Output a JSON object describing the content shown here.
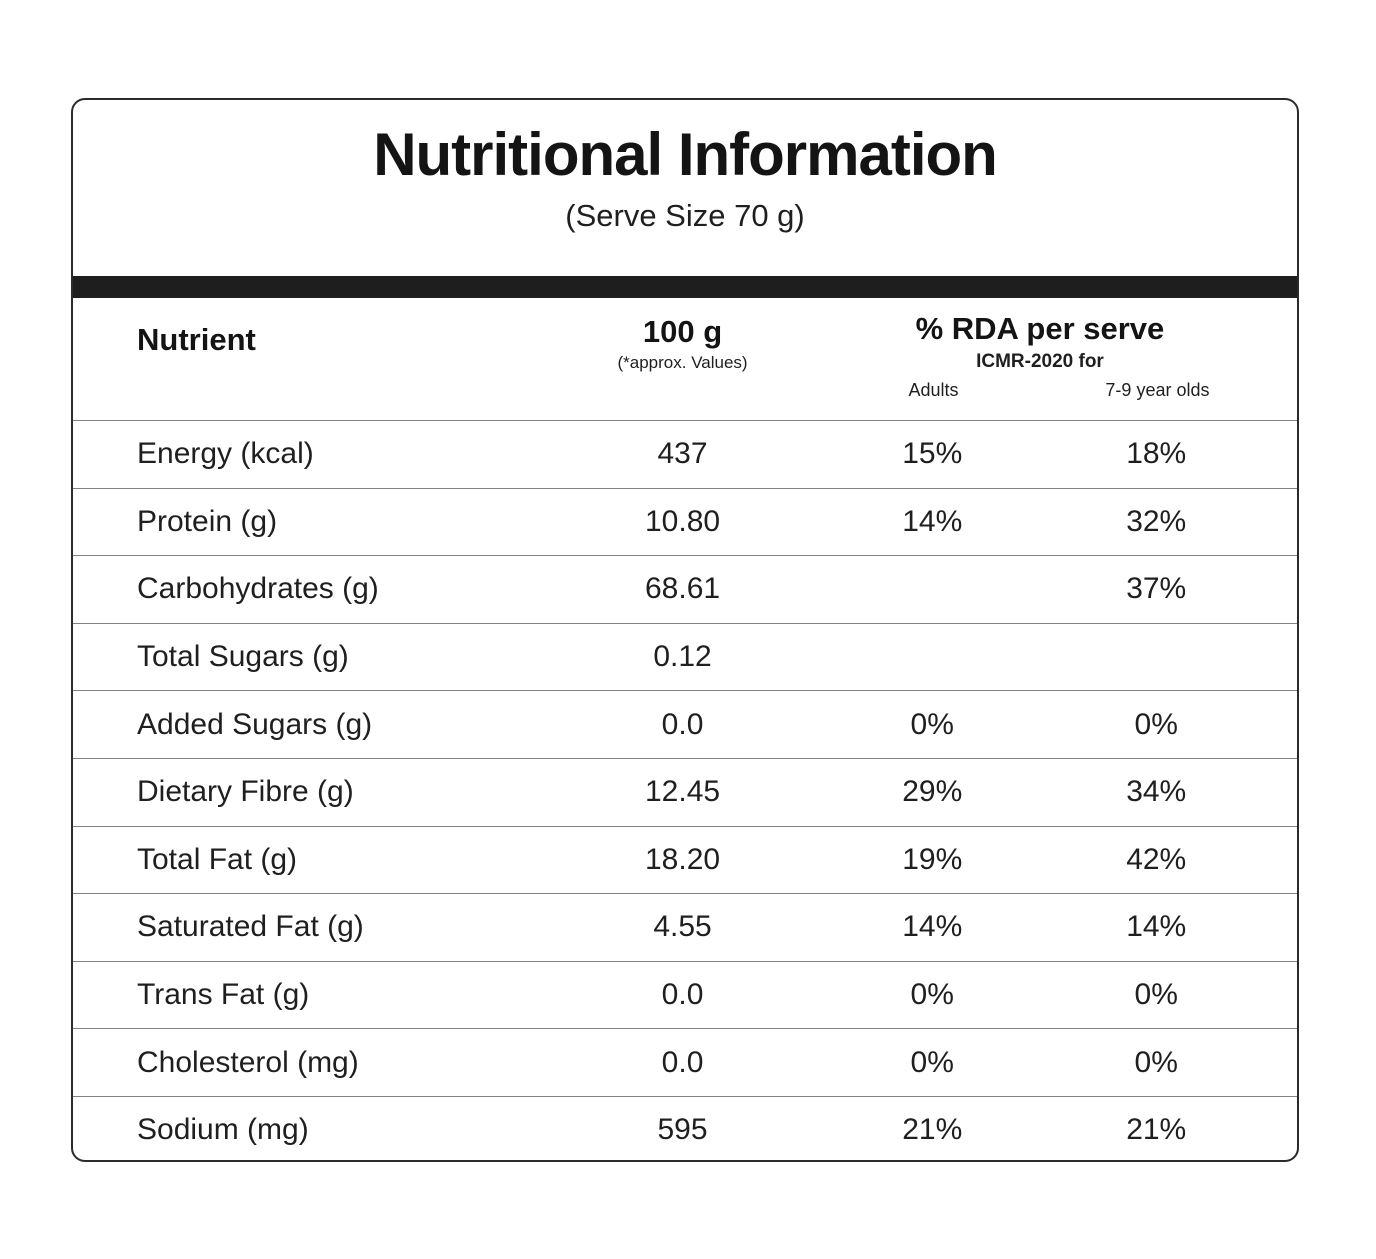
{
  "title": "Nutritional Information",
  "subtitle": "(Serve Size 70 g)",
  "colors": {
    "text": "#1f1f1f",
    "divider_bar": "#1e1e1e",
    "row_separator": "#828282",
    "card_border": "#2b2b2b",
    "background": "#ffffff"
  },
  "table": {
    "header": {
      "nutrient": "Nutrient",
      "per_100g": "100 g",
      "per_100g_note": "(*approx. Values)",
      "rda_title": "% RDA per serve",
      "rda_subtitle": "ICMR-2020 for",
      "col_adults": "Adults",
      "col_kids": "7-9 year olds"
    },
    "rows": [
      {
        "nutrient": "Energy (kcal)",
        "per_100g": "437",
        "adults": "15%",
        "kids": "18%"
      },
      {
        "nutrient": "Protein (g)",
        "per_100g": "10.80",
        "adults": "14%",
        "kids": "32%"
      },
      {
        "nutrient": "Carbohydrates (g)",
        "per_100g": "68.61",
        "adults": "",
        "kids": "37%"
      },
      {
        "nutrient": "Total Sugars (g)",
        "per_100g": "0.12",
        "adults": "",
        "kids": ""
      },
      {
        "nutrient": "Added Sugars (g)",
        "per_100g": "0.0",
        "adults": "0%",
        "kids": "0%"
      },
      {
        "nutrient": "Dietary Fibre (g)",
        "per_100g": "12.45",
        "adults": "29%",
        "kids": "34%"
      },
      {
        "nutrient": "Total Fat (g)",
        "per_100g": "18.20",
        "adults": "19%",
        "kids": "42%"
      },
      {
        "nutrient": "Saturated Fat (g)",
        "per_100g": "4.55",
        "adults": "14%",
        "kids": "14%"
      },
      {
        "nutrient": "Trans Fat (g)",
        "per_100g": "0.0",
        "adults": "0%",
        "kids": "0%"
      },
      {
        "nutrient": "Cholesterol (mg)",
        "per_100g": "0.0",
        "adults": "0%",
        "kids": "0%"
      },
      {
        "nutrient": "Sodium (mg)",
        "per_100g": "595",
        "adults": "21%",
        "kids": "21%"
      }
    ]
  }
}
